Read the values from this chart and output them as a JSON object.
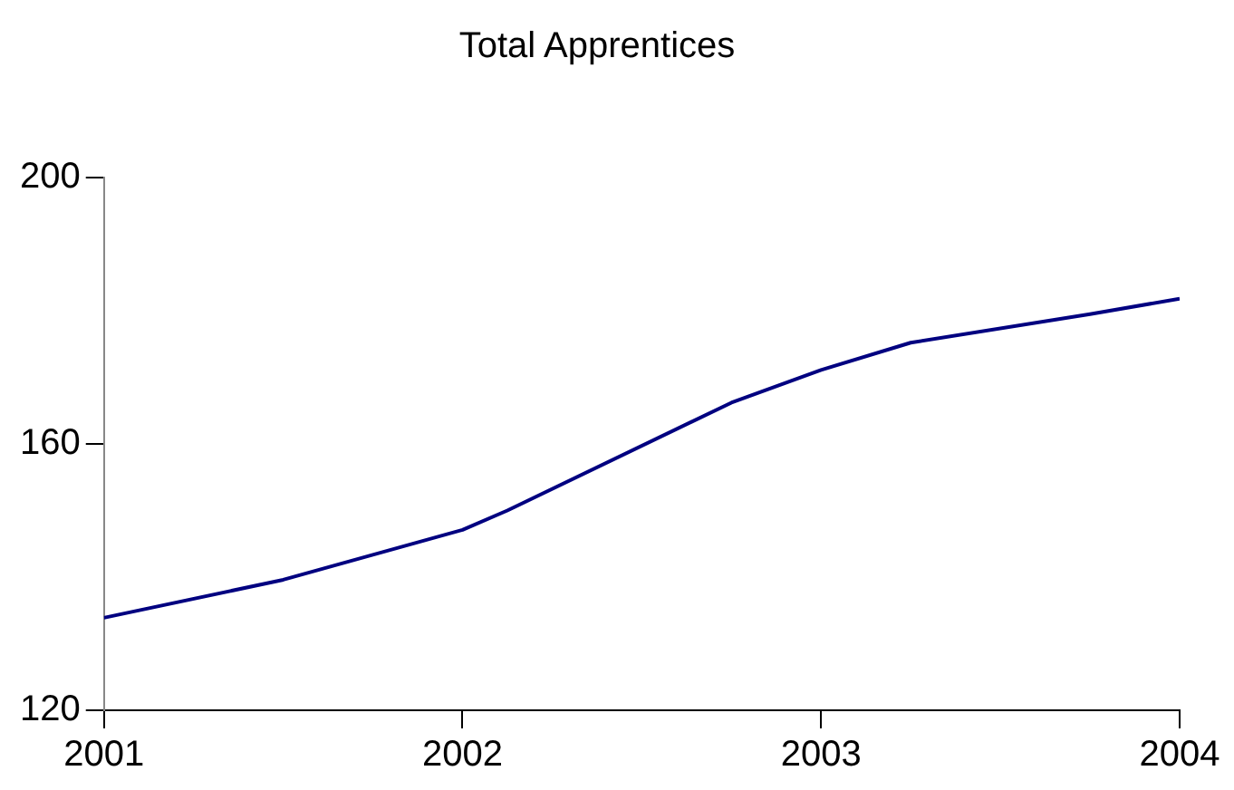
{
  "chart_data": {
    "type": "line",
    "title": "Total Apprentices",
    "x": [
      2001,
      2001.5,
      2002,
      2002.125,
      2002.75,
      2003,
      2003.25,
      2003.75,
      2004
    ],
    "series": [
      {
        "color": "#000080",
        "values": [
          133.9,
          139.6,
          147.1,
          150.0,
          166.2,
          171.1,
          175.2,
          179.5,
          181.8
        ]
      }
    ],
    "xlim": [
      2001,
      2004
    ],
    "xticks": [
      2001,
      2002,
      2003,
      2004
    ],
    "ylim": [
      120,
      200
    ],
    "yticks": [
      120,
      160,
      200
    ],
    "grid": false,
    "legend": false,
    "marker": "none",
    "line_style": "solid"
  }
}
